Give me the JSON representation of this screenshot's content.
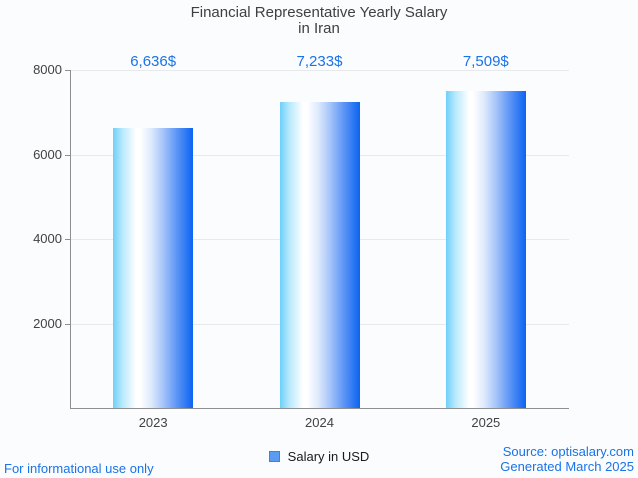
{
  "title": {
    "line1": "Financial Representative Yearly Salary",
    "line2": "in Iran"
  },
  "chart_data": {
    "type": "bar",
    "title": "Financial Representative Yearly Salary in Iran",
    "categories": [
      "2023",
      "2024",
      "2025"
    ],
    "series": [
      {
        "name": "Salary in USD",
        "values": [
          6636,
          7233,
          7509
        ],
        "value_labels": [
          "6,636$",
          "7,233$",
          "7,509$"
        ]
      }
    ],
    "xlabel": "",
    "ylabel": "",
    "ylim": [
      0,
      8000
    ],
    "yticks": [
      2000,
      4000,
      6000,
      8000
    ],
    "grid": true,
    "legend_position": "bottom"
  },
  "legend": {
    "label": "Salary in USD",
    "marker_color": "#5b9bf0"
  },
  "footer": {
    "left": "For informational use only",
    "source": "Source: optisalary.com",
    "generated": "Generated March 2025"
  },
  "colors": {
    "value_label": "#1a73e8",
    "footer_text": "#1a73e8",
    "bar_gradient_left": "#6ed0f8",
    "bar_gradient_mid": "#ffffff",
    "bar_gradient_right": "#0d64f0",
    "axis": "#8f8f8f",
    "gridline": "#e7e9ec",
    "title": "#404040",
    "tick_label": "#424242"
  }
}
